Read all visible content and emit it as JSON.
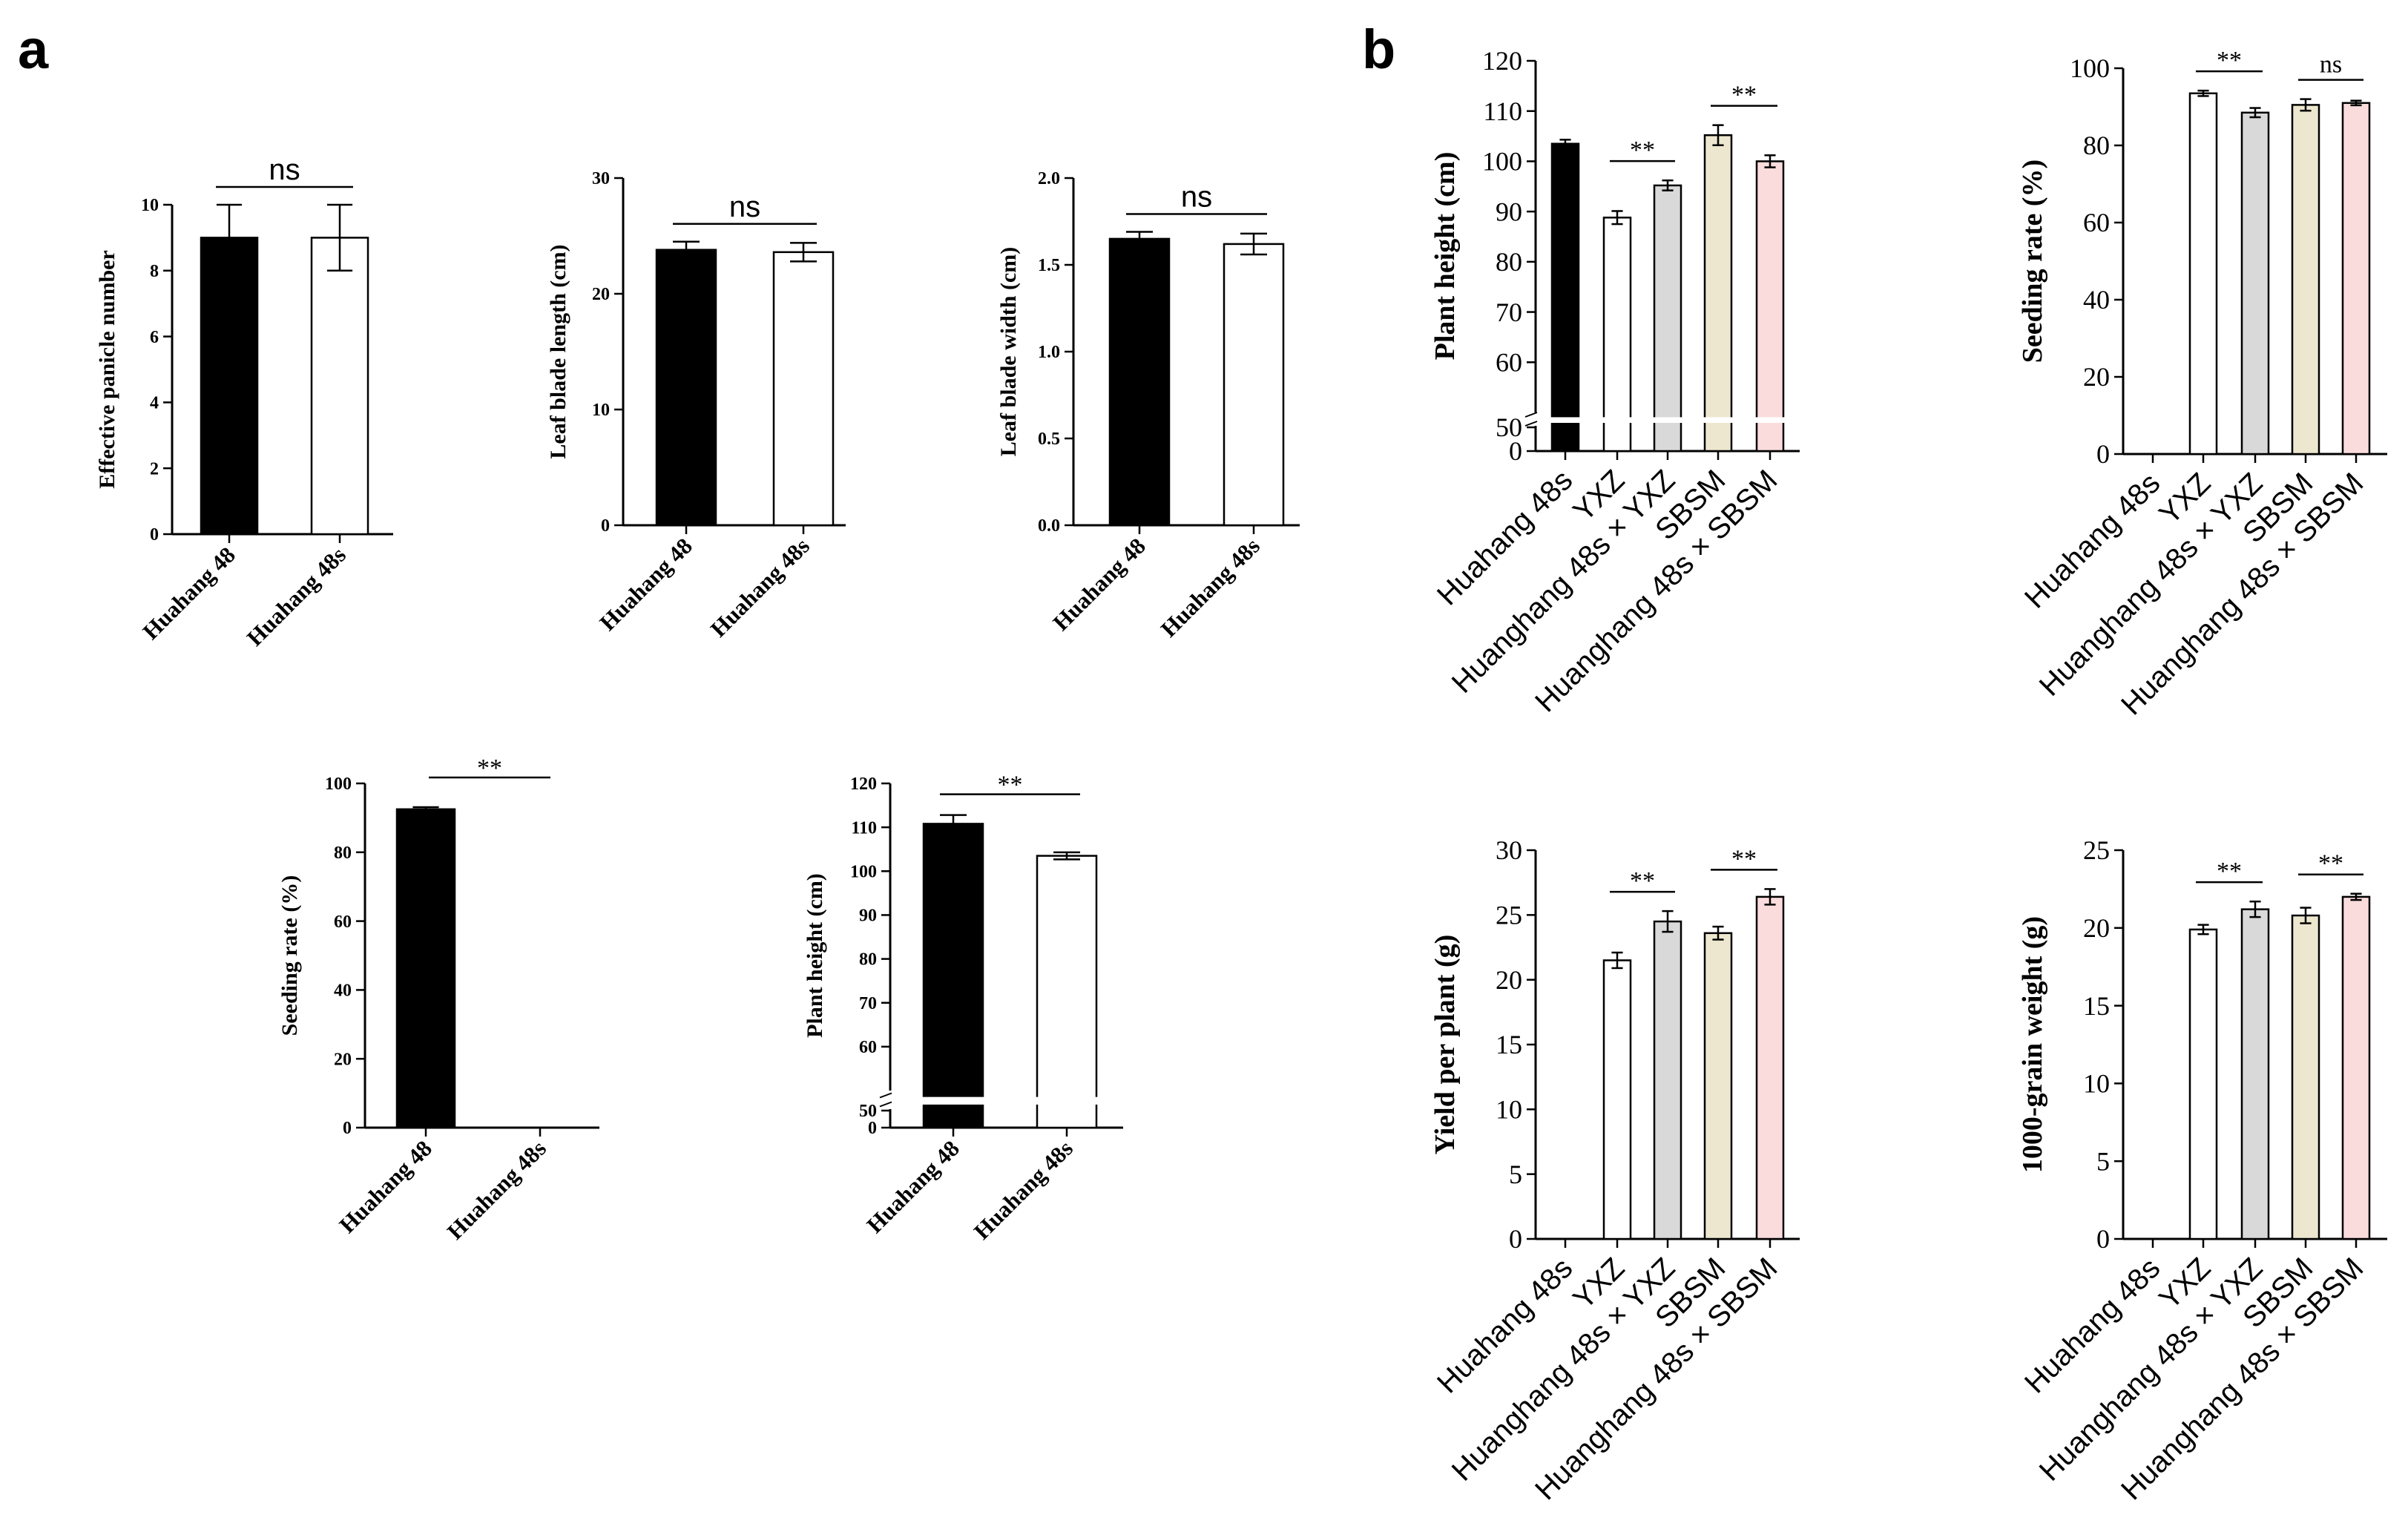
{
  "panels": {
    "a": "a",
    "b": "b"
  },
  "chart_data": [
    {
      "id": "a1",
      "panel": "a",
      "type": "bar",
      "categories": [
        "Huahang 48",
        "Huahang 48s"
      ],
      "values": [
        9,
        9
      ],
      "errors": [
        1,
        1
      ],
      "colors": [
        "#000000",
        "#ffffff"
      ],
      "ylabel": "Effective panicle number",
      "ylim": [
        0,
        10
      ],
      "yticks": [
        0,
        2,
        4,
        6,
        8,
        10
      ],
      "ytick_labels": [
        "0",
        "2",
        "4",
        "6",
        "8",
        "10"
      ],
      "annotations": [
        {
          "from": 0,
          "to": 1,
          "label": "ns"
        }
      ]
    },
    {
      "id": "a2",
      "panel": "a",
      "type": "bar",
      "categories": [
        "Huahang 48",
        "Huahang 48s"
      ],
      "values": [
        23.8,
        23.6
      ],
      "errors": [
        0.7,
        0.8
      ],
      "colors": [
        "#000000",
        "#ffffff"
      ],
      "ylabel": "Leaf blade length (cm)",
      "ylim": [
        0,
        30
      ],
      "yticks": [
        0,
        10,
        20,
        30
      ],
      "ytick_labels": [
        "0",
        "10",
        "20",
        "30"
      ],
      "annotations": [
        {
          "from": 0,
          "to": 1,
          "label": "ns"
        }
      ]
    },
    {
      "id": "a3",
      "panel": "a",
      "type": "bar",
      "categories": [
        "Huahang 48",
        "Huahang 48s"
      ],
      "values": [
        1.65,
        1.62
      ],
      "errors": [
        0.04,
        0.06
      ],
      "colors": [
        "#000000",
        "#ffffff"
      ],
      "ylabel": "Leaf blade width (cm)",
      "ylim": [
        0,
        2.0
      ],
      "yticks": [
        0,
        0.5,
        1.0,
        1.5,
        2.0
      ],
      "ytick_labels": [
        "0.0",
        "0.5",
        "1.0",
        "1.5",
        "2.0"
      ],
      "annotations": [
        {
          "from": 0,
          "to": 1,
          "label": "ns"
        }
      ]
    },
    {
      "id": "a4",
      "panel": "a",
      "type": "bar",
      "categories": [
        "Huahang 48",
        "Huahang 48s"
      ],
      "values": [
        92.5,
        0
      ],
      "errors": [
        0.6,
        0
      ],
      "colors": [
        "#000000",
        "#ffffff"
      ],
      "ylabel": "Seeding rate (%)",
      "ylim": [
        0,
        100
      ],
      "yticks": [
        0,
        20,
        40,
        60,
        80,
        100
      ],
      "ytick_labels": [
        "0",
        "20",
        "40",
        "60",
        "80",
        "100"
      ],
      "annotations": [
        {
          "from": 0,
          "to": 1,
          "label": "**"
        }
      ]
    },
    {
      "id": "a5",
      "panel": "a",
      "type": "bar",
      "categories": [
        "Huahang 48",
        "Huahang 48s"
      ],
      "values": [
        110.8,
        103.5
      ],
      "errors": [
        2.0,
        0.8
      ],
      "colors": [
        "#000000",
        "#ffffff"
      ],
      "ylabel": "Plant height (cm)",
      "ylim": [
        0,
        120
      ],
      "axis_break": [
        0,
        50
      ],
      "yticks": [
        0,
        50,
        60,
        70,
        80,
        90,
        100,
        110,
        120
      ],
      "ytick_labels": [
        "0",
        "50",
        "60",
        "70",
        "80",
        "90",
        "100",
        "110",
        "120"
      ],
      "annotations": [
        {
          "from": 0,
          "to": 1,
          "label": "**"
        }
      ]
    },
    {
      "id": "b1",
      "panel": "b",
      "type": "bar",
      "categories": [
        "Huahang 48s",
        "YXZ",
        "Huanghang 48s × YXZ",
        "SBSM",
        "Huanghang 48s × SBSM"
      ],
      "values": [
        103.5,
        88.8,
        95.2,
        105.2,
        100.0
      ],
      "errors": [
        0.8,
        1.3,
        1.0,
        2.0,
        1.2
      ],
      "colors": [
        "#000000",
        "#ffffff",
        "#d9d9d9",
        "#ede7cf",
        "#fbdcdc"
      ],
      "ylabel": "Plant height (cm)",
      "ylim": [
        0,
        120
      ],
      "axis_break": [
        0,
        50
      ],
      "yticks": [
        0,
        50,
        60,
        70,
        80,
        90,
        100,
        110,
        120
      ],
      "ytick_labels": [
        "0",
        "50",
        "60",
        "70",
        "80",
        "90",
        "100",
        "110",
        "120"
      ],
      "annotations": [
        {
          "from": 1,
          "to": 2,
          "label": "**"
        },
        {
          "from": 3,
          "to": 4,
          "label": "**"
        }
      ]
    },
    {
      "id": "b2",
      "panel": "b",
      "type": "bar",
      "categories": [
        "Huahang 48s",
        "YXZ",
        "Huanghang 48s × YXZ",
        "SBSM",
        "Huanghang 48s × SBSM"
      ],
      "values": [
        0,
        93.5,
        88.5,
        90.5,
        91.0
      ],
      "errors": [
        0,
        0.7,
        1.2,
        1.5,
        0.6
      ],
      "colors": [
        "#000000",
        "#ffffff",
        "#d9d9d9",
        "#ede7cf",
        "#fbdcdc"
      ],
      "ylabel": "Seeding rate (%)",
      "ylim": [
        0,
        100
      ],
      "yticks": [
        0,
        20,
        40,
        60,
        80,
        100
      ],
      "ytick_labels": [
        "0",
        "20",
        "40",
        "60",
        "80",
        "100"
      ],
      "annotations": [
        {
          "from": 1,
          "to": 2,
          "label": "**"
        },
        {
          "from": 3,
          "to": 4,
          "label": "ns"
        }
      ]
    },
    {
      "id": "b3",
      "panel": "b",
      "type": "bar",
      "categories": [
        "Huahang 48s",
        "YXZ",
        "Huanghang 48s × YXZ",
        "SBSM",
        "Huanghang 48s × SBSM"
      ],
      "values": [
        0,
        21.5,
        24.5,
        23.6,
        26.4
      ],
      "errors": [
        0,
        0.6,
        0.8,
        0.5,
        0.6
      ],
      "colors": [
        "#000000",
        "#ffffff",
        "#d9d9d9",
        "#ede7cf",
        "#fbdcdc"
      ],
      "ylabel": "Yield per plant (g)",
      "ylim": [
        0,
        30
      ],
      "yticks": [
        0,
        5,
        10,
        15,
        20,
        25,
        30
      ],
      "ytick_labels": [
        "0",
        "5",
        "10",
        "15",
        "20",
        "25",
        "30"
      ],
      "annotations": [
        {
          "from": 1,
          "to": 2,
          "label": "**"
        },
        {
          "from": 3,
          "to": 4,
          "label": "**"
        }
      ]
    },
    {
      "id": "b4",
      "panel": "b",
      "type": "bar",
      "categories": [
        "Huahang 48s",
        "YXZ",
        "Huanghang 48s × YXZ",
        "SBSM",
        "Huanghang 48s × SBSM"
      ],
      "values": [
        0,
        19.9,
        21.2,
        20.8,
        22.0
      ],
      "errors": [
        0,
        0.3,
        0.5,
        0.5,
        0.2
      ],
      "colors": [
        "#000000",
        "#ffffff",
        "#d9d9d9",
        "#ede7cf",
        "#fbdcdc"
      ],
      "ylabel": "1000-grain weight (g)",
      "ylim": [
        0,
        25
      ],
      "yticks": [
        0,
        5,
        10,
        15,
        20,
        25
      ],
      "ytick_labels": [
        "0",
        "5",
        "10",
        "15",
        "20",
        "25"
      ],
      "annotations": [
        {
          "from": 1,
          "to": 2,
          "label": "**"
        },
        {
          "from": 3,
          "to": 4,
          "label": "**"
        }
      ]
    }
  ]
}
